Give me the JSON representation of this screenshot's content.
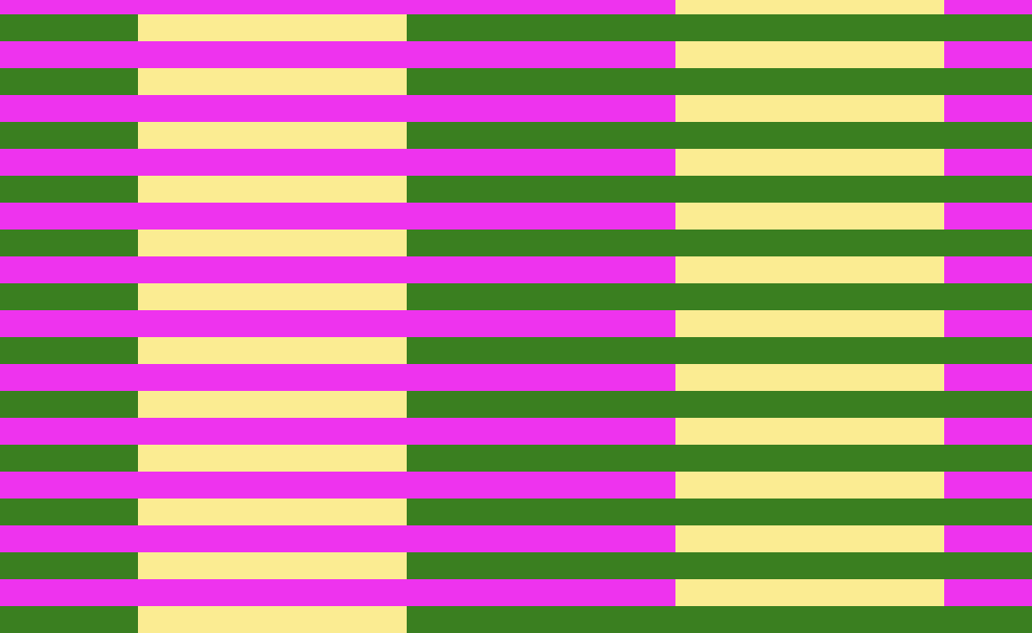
{
  "pattern": {
    "colors": {
      "magenta": "#ee33ee",
      "green": "#3a7f20",
      "yellow": "#fbec92"
    }
  }
}
